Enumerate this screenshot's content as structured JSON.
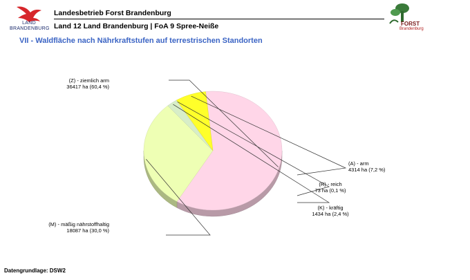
{
  "header": {
    "logo_line1": "LAND",
    "logo_line2": "BRANDENBURG",
    "org": "Landesbetrieb Forst Brandenburg",
    "unit": "Land 12 Land Brandenburg | FoA 9 Spree-Neiße",
    "forst_word": "FORST",
    "forst_sub": "Brandenburg"
  },
  "title": "VII - Waldfläche nach Nährkraftstufen auf terrestrischen Standorten",
  "footer": "Datengrundlage: DSW2",
  "colors": {
    "title": "#3b64c4",
    "slice_ziemlich_arm": "#ffd6e8",
    "slice_massig": "#eeffb4",
    "slice_reich": "#f2ffd8",
    "slice_kraeftig": "#d8eec8",
    "slice_arm": "#ffff2a"
  },
  "chart_data": {
    "type": "pie",
    "title": "VII - Waldfläche nach Nährkraftstufen auf terrestrischen Standorten",
    "slices": [
      {
        "name": "(Z) - ziemlich arm",
        "value": 36417,
        "percent": 60.4,
        "value_text": "36417 ha (60,4 %)",
        "color": "#ffd6e8"
      },
      {
        "name": "(M) - mäßig nährstoffhaltig",
        "value": 18087,
        "percent": 30.0,
        "value_text": "18087 ha (30,0 %)",
        "color": "#eeffb4"
      },
      {
        "name": "(K) - kräftig",
        "value": 1434,
        "percent": 2.4,
        "value_text": "1434 ha (2,4 %)",
        "color": "#d8eec8"
      },
      {
        "name": "(R) - reich",
        "value": 73,
        "percent": 0.1,
        "value_text": "73 ha (0,1 %)",
        "color": "#f2ffd8"
      },
      {
        "name": "(A) - arm",
        "value": 4314,
        "percent": 7.2,
        "value_text": "4314 ha (7,2 %)",
        "color": "#ffff2a"
      }
    ]
  }
}
